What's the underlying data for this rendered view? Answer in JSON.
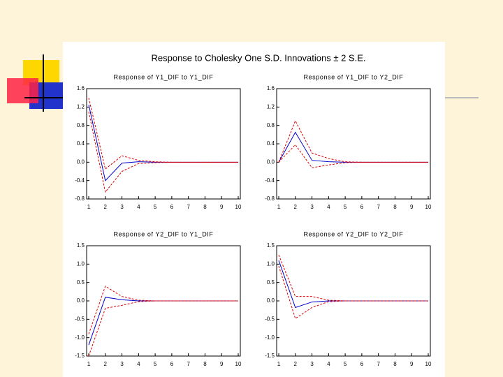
{
  "title": "Response to Cholesky One S.D. Innovations ± 2 S.E.",
  "chart_data": [
    {
      "type": "line",
      "title": "Response of Y1_DIF to Y1_DIF",
      "x": [
        1,
        2,
        3,
        4,
        5,
        6,
        7,
        8,
        9,
        10
      ],
      "xlim": [
        1,
        10
      ],
      "xticks": [
        1,
        2,
        3,
        4,
        5,
        6,
        7,
        8,
        9,
        10
      ],
      "ylim": [
        -0.8,
        1.6
      ],
      "yticks": [
        -0.8,
        -0.4,
        {
          "value": 0,
          "label": "0.0"
        },
        0.4,
        0.8,
        1.2,
        1.6
      ],
      "series": [
        {
          "color": "#0000cc",
          "dashed": false,
          "values": [
            1.25,
            -0.4,
            -0.02,
            0.01,
            0,
            0,
            0,
            0,
            0,
            0
          ]
        },
        {
          "color": "#dd0000",
          "dashed": true,
          "values": [
            1.4,
            -0.15,
            0.14,
            0.04,
            0.01,
            0,
            0,
            0,
            0,
            0
          ]
        },
        {
          "color": "#dd0000",
          "dashed": true,
          "values": [
            1.1,
            -0.65,
            -0.2,
            -0.03,
            -0.01,
            0,
            0,
            0,
            0,
            0
          ]
        }
      ]
    },
    {
      "type": "line",
      "title": "Response of Y1_DIF to Y2_DIF",
      "x": [
        1,
        2,
        3,
        4,
        5,
        6,
        7,
        8,
        9,
        10
      ],
      "xlim": [
        1,
        10
      ],
      "xticks": [
        1,
        2,
        3,
        4,
        5,
        6,
        7,
        8,
        9,
        10
      ],
      "ylim": [
        -0.8,
        1.6
      ],
      "yticks": [
        -0.8,
        -0.4,
        {
          "value": 0,
          "label": "0.0"
        },
        0.4,
        0.8,
        1.2,
        1.6
      ],
      "series": [
        {
          "color": "#0000cc",
          "dashed": false,
          "values": [
            0,
            0.65,
            0.04,
            0.01,
            0,
            0,
            0,
            0,
            0,
            0
          ]
        },
        {
          "color": "#dd0000",
          "dashed": true,
          "values": [
            0,
            0.9,
            0.2,
            0.08,
            0.01,
            0,
            0,
            0,
            0,
            0
          ]
        },
        {
          "color": "#dd0000",
          "dashed": true,
          "values": [
            0,
            0.38,
            -0.12,
            -0.06,
            -0.01,
            0,
            0,
            0,
            0,
            0
          ]
        }
      ]
    },
    {
      "type": "line",
      "title": "Response of Y2_DIF to Y1_DIF",
      "x": [
        1,
        2,
        3,
        4,
        5,
        6,
        7,
        8,
        9,
        10
      ],
      "xlim": [
        1,
        10
      ],
      "xticks": [
        1,
        2,
        3,
        4,
        5,
        6,
        7,
        8,
        9,
        10
      ],
      "ylim": [
        -1.5,
        1.5
      ],
      "yticks": [
        -1.5,
        {
          "value": -1,
          "label": "-1.0"
        },
        -0.5,
        {
          "value": 0,
          "label": "0.0"
        },
        0.5,
        {
          "value": 1,
          "label": "1.0"
        },
        1.5
      ],
      "series": [
        {
          "color": "#0000cc",
          "dashed": false,
          "values": [
            -1.2,
            0.1,
            0.03,
            0,
            0,
            0,
            0,
            0,
            0,
            0
          ]
        },
        {
          "color": "#dd0000",
          "dashed": true,
          "values": [
            -0.9,
            0.4,
            0.12,
            0.02,
            0,
            0,
            0,
            0,
            0,
            0
          ]
        },
        {
          "color": "#dd0000",
          "dashed": true,
          "values": [
            -1.5,
            -0.2,
            -0.12,
            -0.02,
            0,
            0,
            0,
            0,
            0,
            0
          ]
        }
      ]
    },
    {
      "type": "line",
      "title": "Response of Y2_DIF to Y2_DIF",
      "x": [
        1,
        2,
        3,
        4,
        5,
        6,
        7,
        8,
        9,
        10
      ],
      "xlim": [
        1,
        10
      ],
      "xticks": [
        1,
        2,
        3,
        4,
        5,
        6,
        7,
        8,
        9,
        10
      ],
      "ylim": [
        -1.5,
        1.5
      ],
      "yticks": [
        -1.5,
        {
          "value": -1,
          "label": "-1.0"
        },
        -0.5,
        {
          "value": 0,
          "label": "0.0"
        },
        0.5,
        {
          "value": 1,
          "label": "1.0"
        },
        1.5
      ],
      "series": [
        {
          "color": "#0000cc",
          "dashed": false,
          "values": [
            1.1,
            -0.18,
            -0.03,
            0,
            0,
            0,
            0,
            0,
            0,
            0
          ]
        },
        {
          "color": "#dd0000",
          "dashed": true,
          "values": [
            1.25,
            0.12,
            0.12,
            0.02,
            0,
            0,
            0,
            0,
            0,
            0
          ]
        },
        {
          "color": "#dd0000",
          "dashed": true,
          "values": [
            0.95,
            -0.48,
            -0.18,
            -0.02,
            0,
            0,
            0,
            0,
            0,
            0
          ]
        }
      ]
    }
  ]
}
